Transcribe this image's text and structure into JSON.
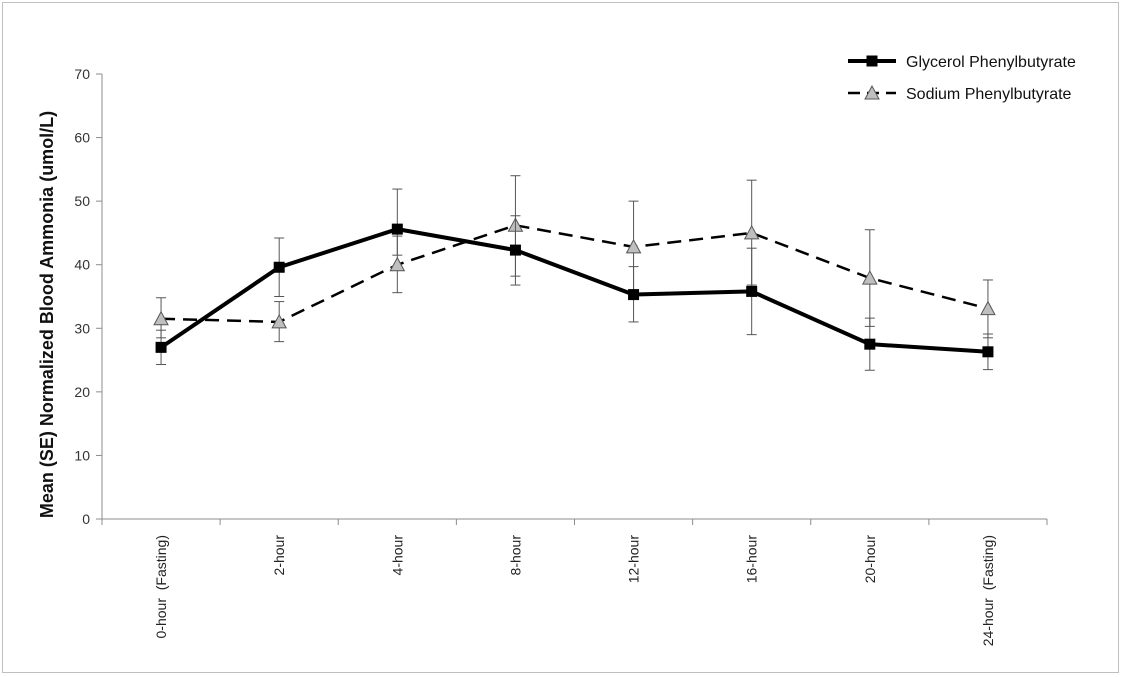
{
  "chart_data": {
    "type": "line",
    "title": "",
    "xlabel": "",
    "ylabel": "Mean (SE) Normalized Blood Ammonia (umol/L)",
    "categories": [
      "0-hour  (Fasting)",
      "2-hour",
      "4-hour",
      "8-hour",
      "12-hour",
      "16-hour",
      "20-hour",
      "24-hour  (Fasting)"
    ],
    "ylim": [
      0,
      70
    ],
    "yticks": [
      0,
      10,
      20,
      30,
      40,
      50,
      60,
      70
    ],
    "grid": false,
    "legend_position": "top-right",
    "series": [
      {
        "name": "Glycerol Phenylbutyrate",
        "style": "solid",
        "marker": "square",
        "color": "#000000",
        "values": [
          27.0,
          39.6,
          45.6,
          42.3,
          35.3,
          35.8,
          27.5,
          26.3
        ],
        "error_low": [
          24.3,
          35.0,
          41.5,
          36.8,
          31.0,
          29.0,
          23.4,
          23.5
        ],
        "error_high": [
          29.7,
          44.2,
          51.9,
          47.7,
          39.7,
          42.6,
          31.6,
          29.1
        ]
      },
      {
        "name": "Sodium Phenylbutyrate",
        "style": "dashed",
        "marker": "triangle",
        "color": "#000000",
        "marker_fill": "#bfbfbf",
        "values": [
          31.5,
          31.0,
          40.0,
          46.2,
          42.8,
          45.0,
          37.9,
          33.1
        ],
        "error_low": [
          28.5,
          27.9,
          35.6,
          38.2,
          35.6,
          36.8,
          30.3,
          28.5
        ],
        "error_high": [
          34.8,
          34.2,
          44.5,
          54.0,
          50.0,
          53.3,
          45.5,
          37.6
        ]
      }
    ]
  }
}
